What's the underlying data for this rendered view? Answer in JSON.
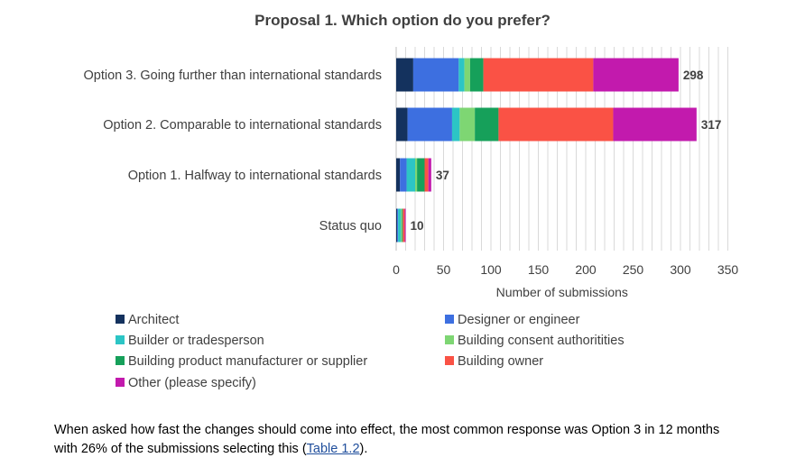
{
  "chart_data": {
    "type": "bar",
    "orientation": "horizontal",
    "stacked": true,
    "title": "Proposal 1. Which option do you prefer?",
    "xlabel": "Number of submissions",
    "ylabel": "",
    "xlim": [
      0,
      350
    ],
    "xticks": [
      0,
      50,
      100,
      150,
      200,
      250,
      300,
      350
    ],
    "grid": true,
    "legend_position": "bottom",
    "categories": [
      "Option 3. Going further than international standards",
      "Option 2. Comparable to international standards",
      "Option 1. Halfway to international standards",
      "Status quo"
    ],
    "totals": [
      298,
      317,
      37,
      10
    ],
    "series": [
      {
        "name": "Architect",
        "color": "#14325e",
        "values": [
          18,
          12,
          4,
          1
        ]
      },
      {
        "name": "Designer or engineer",
        "color": "#3d6fe0",
        "values": [
          48,
          47,
          7,
          1
        ]
      },
      {
        "name": "Builder or tradesperson",
        "color": "#2cc5c5",
        "values": [
          6,
          8,
          9,
          3
        ]
      },
      {
        "name": "Building consent authoritities",
        "color": "#7ed673",
        "values": [
          6,
          16,
          2,
          1
        ]
      },
      {
        "name": "Building product manufacturer or supplier",
        "color": "#16a05a",
        "values": [
          14,
          25,
          8,
          1
        ]
      },
      {
        "name": "Building owner",
        "color": "#fa5245",
        "values": [
          116,
          121,
          4,
          2
        ]
      },
      {
        "name": "Other (please specify)",
        "color": "#c21aad",
        "values": [
          90,
          88,
          3,
          1
        ]
      }
    ]
  },
  "caption": {
    "text_before": "When asked how fast the changes should come into effect, the most common response was Option 3 in 12 months with 26% of the submissions selecting this (",
    "link_text": "Table 1.2",
    "text_after": ")."
  }
}
